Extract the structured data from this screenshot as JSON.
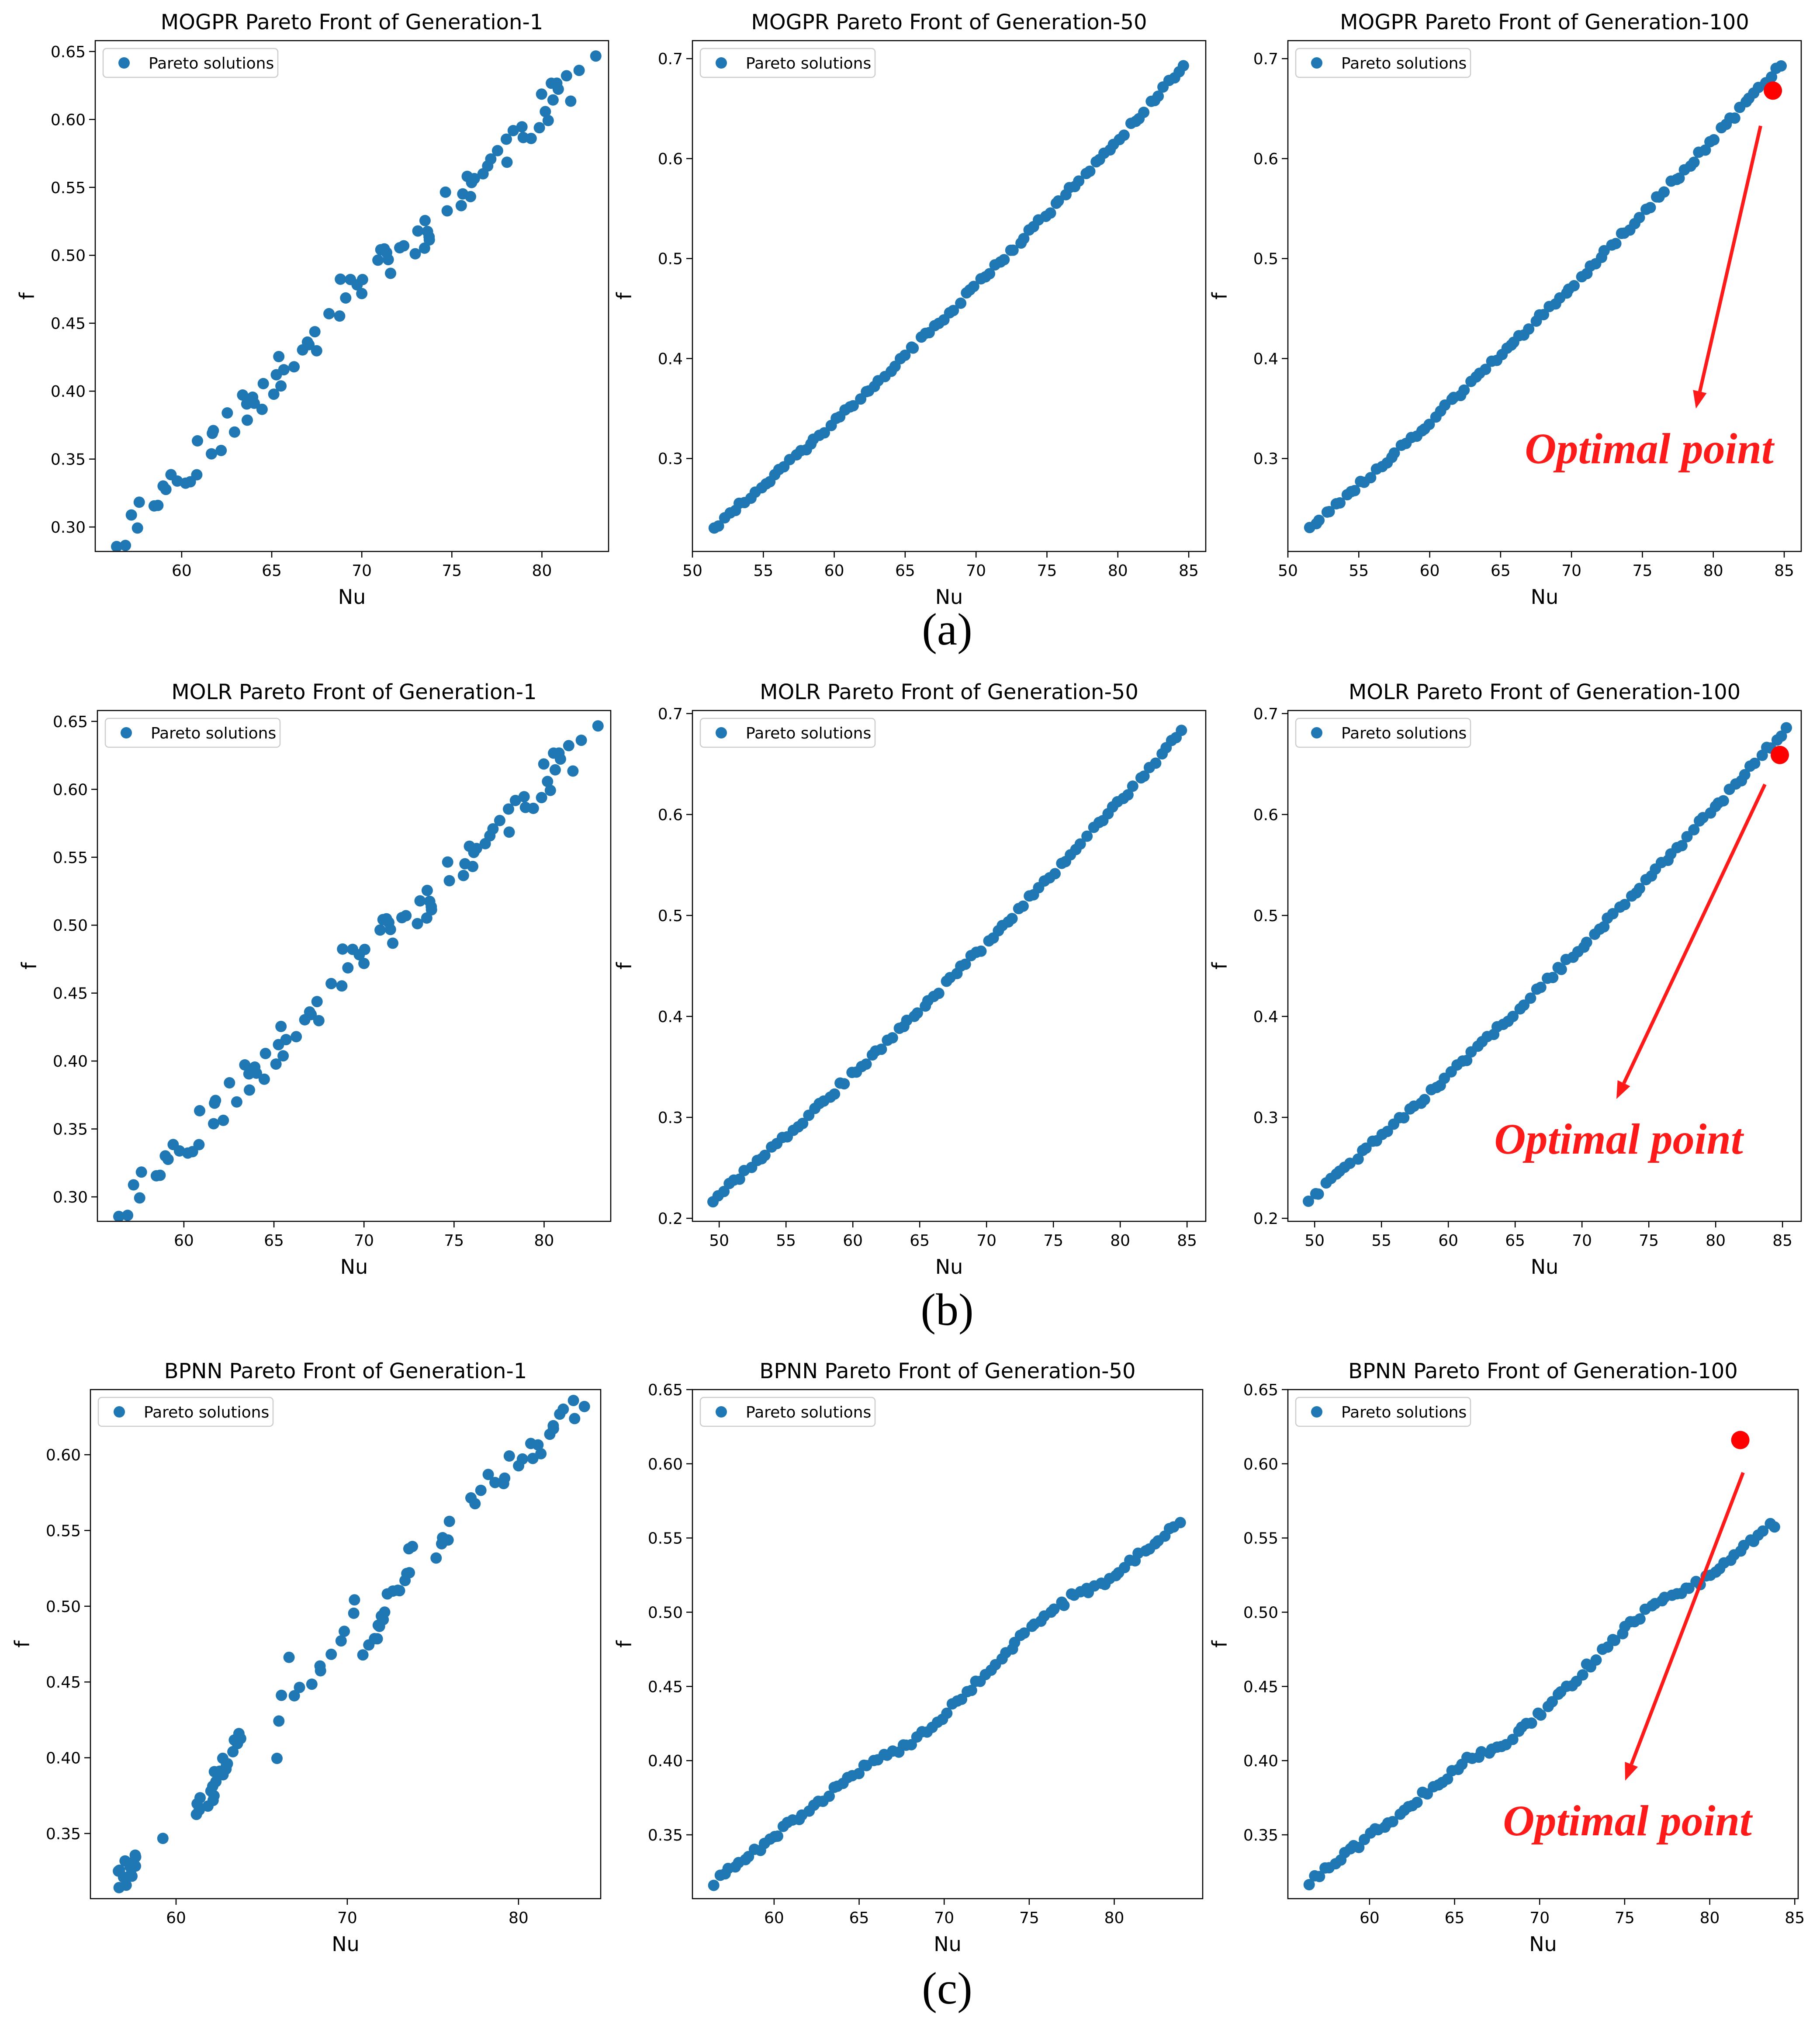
{
  "colors": {
    "point": "#1f77b4",
    "optimal": "#ff0000",
    "annotation": "#ff1a1a",
    "axis": "#000000"
  },
  "legend_label": "Pareto solutions",
  "xlabel": "Nu",
  "ylabel": "f",
  "captions": [
    "(a)",
    "(b)",
    "(c)"
  ],
  "annotation_text": "Optimal point",
  "chart_data": [
    {
      "type": "scatter",
      "title": "MOGPR Pareto Front of Generation-1",
      "xlim": [
        55.2,
        83.7
      ],
      "ylim": [
        0.282,
        0.658
      ],
      "xticks": [
        60,
        65,
        70,
        75,
        80
      ],
      "yticks": [
        0.3,
        0.35,
        0.4,
        0.45,
        0.5,
        0.55,
        0.6,
        0.65
      ],
      "ytick_decimals": 2,
      "mode": "scatter1",
      "seed": 11,
      "optimal": null
    },
    {
      "type": "scatter",
      "title": "MOGPR Pareto Front of Generation-50",
      "xlim": [
        50.0,
        86.2
      ],
      "ylim": [
        0.207,
        0.718
      ],
      "xticks": [
        50,
        55,
        60,
        65,
        70,
        75,
        80,
        85
      ],
      "yticks": [
        0.3,
        0.4,
        0.5,
        0.6,
        0.7
      ],
      "ytick_decimals": 1,
      "mode": "curve",
      "x_start": 51.6,
      "x_end": 84.7,
      "y_start": 0.232,
      "y_end": 0.693,
      "n": 95,
      "seed": 12,
      "optimal": null
    },
    {
      "type": "scatter",
      "title": "MOGPR Pareto Front of Generation-100",
      "xlim": [
        50.0,
        86.2
      ],
      "ylim": [
        0.207,
        0.718
      ],
      "xticks": [
        50,
        55,
        60,
        65,
        70,
        75,
        80,
        85
      ],
      "yticks": [
        0.3,
        0.4,
        0.5,
        0.6,
        0.7
      ],
      "ytick_decimals": 1,
      "mode": "curve",
      "x_start": 51.6,
      "x_end": 84.7,
      "y_start": 0.232,
      "y_end": 0.693,
      "n": 95,
      "seed": 13,
      "optimal": {
        "x": 84.2,
        "y": 0.668
      }
    },
    {
      "type": "scatter",
      "title": "MOLR Pareto Front of Generation-1",
      "xlim": [
        55.2,
        83.7
      ],
      "ylim": [
        0.282,
        0.658
      ],
      "xticks": [
        60,
        65,
        70,
        75,
        80
      ],
      "yticks": [
        0.3,
        0.35,
        0.4,
        0.45,
        0.5,
        0.55,
        0.6,
        0.65
      ],
      "ytick_decimals": 2,
      "mode": "scatter1",
      "seed": 11,
      "optimal": null
    },
    {
      "type": "scatter",
      "title": "MOLR Pareto Front of Generation-50",
      "xlim": [
        48.0,
        86.4
      ],
      "ylim": [
        0.197,
        0.703
      ],
      "xticks": [
        50,
        55,
        60,
        65,
        70,
        75,
        80,
        85
      ],
      "yticks": [
        0.2,
        0.3,
        0.4,
        0.5,
        0.6,
        0.7
      ],
      "ytick_decimals": 1,
      "mode": "curve",
      "x_start": 49.6,
      "x_end": 84.6,
      "y_start": 0.219,
      "y_end": 0.682,
      "n": 90,
      "seed": 21,
      "optimal": null
    },
    {
      "type": "scatter",
      "title": "MOLR Pareto Front of Generation-100",
      "xlim": [
        48.0,
        86.4
      ],
      "ylim": [
        0.197,
        0.703
      ],
      "xticks": [
        50,
        55,
        60,
        65,
        70,
        75,
        80,
        85
      ],
      "yticks": [
        0.2,
        0.3,
        0.4,
        0.5,
        0.6,
        0.7
      ],
      "ytick_decimals": 1,
      "mode": "curve",
      "x_start": 49.6,
      "x_end": 85.4,
      "y_start": 0.219,
      "y_end": 0.687,
      "n": 92,
      "seed": 22,
      "optimal": {
        "x": 84.8,
        "y": 0.659
      }
    },
    {
      "type": "scatter",
      "title": "BPNN Pareto Front of Generation-1",
      "xlim": [
        55.0,
        84.8
      ],
      "ylim": [
        0.307,
        0.643
      ],
      "xticks": [
        60,
        70,
        80
      ],
      "yticks": [
        0.35,
        0.4,
        0.45,
        0.5,
        0.55,
        0.6
      ],
      "ytick_decimals": 2,
      "mode": "scatter3",
      "seed": 31,
      "optimal": null
    },
    {
      "type": "scatter",
      "title": "BPNN Pareto Front of Generation-50",
      "xlim": [
        55.2,
        85.2
      ],
      "ylim": [
        0.307,
        0.65
      ],
      "xticks": [
        60,
        65,
        70,
        75,
        80
      ],
      "yticks": [
        0.35,
        0.4,
        0.45,
        0.5,
        0.55,
        0.6,
        0.65
      ],
      "ytick_decimals": 2,
      "mode": "sshape",
      "x_start": 56.5,
      "x_end": 83.8,
      "n": 95,
      "seed": 32,
      "optimal": null
    },
    {
      "type": "scatter",
      "title": "BPNN Pareto Front of Generation-100",
      "xlim": [
        55.2,
        85.2
      ],
      "ylim": [
        0.307,
        0.65
      ],
      "xticks": [
        60,
        65,
        70,
        75,
        80,
        85
      ],
      "yticks": [
        0.35,
        0.4,
        0.45,
        0.5,
        0.55,
        0.6,
        0.65
      ],
      "ytick_decimals": 2,
      "mode": "sshape",
      "x_start": 56.5,
      "x_end": 83.8,
      "n": 95,
      "seed": 33,
      "optimal": {
        "x": 81.8,
        "y": 0.616
      }
    }
  ]
}
